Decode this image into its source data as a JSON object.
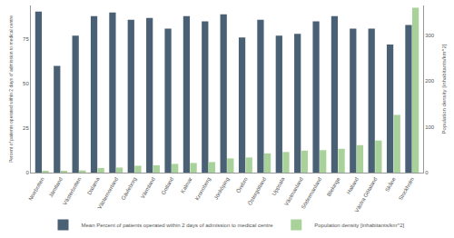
{
  "chart_data": {
    "type": "bar",
    "categories": [
      "Norrbotten",
      "Jämtland",
      "Västerbotten",
      "Dalarna",
      "Västernorrland",
      "Gävleborg",
      "Värmland",
      "Gotland",
      "Kalmar",
      "Kronoberg",
      "Jönköping",
      "Örebro",
      "Östergötland",
      "Uppsala",
      "Västmanland",
      "Södermanland",
      "Blekinge",
      "Halland",
      "Västra Götaland",
      "Skåne",
      "Stockholm"
    ],
    "series": [
      {
        "name": "Mean Percent of patients operated within 2 days of admission to medical centre",
        "color": "#4a6175",
        "values": [
          90.5,
          60,
          77,
          88,
          90,
          86,
          87,
          81,
          88,
          85,
          89,
          76,
          86,
          77,
          78,
          85,
          88,
          81,
          81,
          72,
          83
        ]
      },
      {
        "name": "Population density [inhabitants/km^2]",
        "color": "#a9d19a",
        "axis": "y2",
        "values": [
          2.6,
          2.7,
          4.7,
          10,
          11,
          15,
          16,
          19,
          21,
          23,
          31,
          33,
          42,
          45,
          48,
          49,
          52,
          60,
          70,
          126,
          360
        ]
      }
    ],
    "y_label": "Percent of patients operated within 2 days of admission to medical centre",
    "y2_label": "Population density [inhabitants/km^2]",
    "ylim": [
      0,
      94
    ],
    "yticks": [
      0,
      25,
      50,
      75
    ],
    "y2lim": [
      0,
      365
    ],
    "y2ticks": [
      0,
      100,
      200,
      300
    ],
    "grid": false,
    "legend": "bottom"
  }
}
